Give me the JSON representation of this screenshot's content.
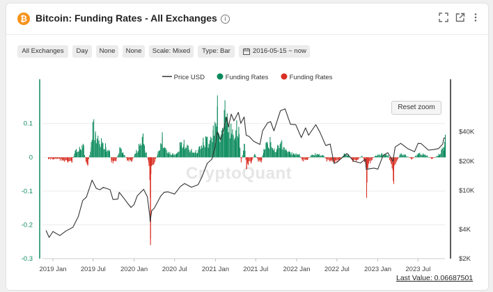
{
  "header": {
    "title": "Bitcoin: Funding Rates - All Exchanges",
    "info_glyph": "i",
    "coin_glyph": "₿",
    "icons": [
      "expand-icon",
      "external-link-icon",
      "more-vertical-icon"
    ]
  },
  "filters": [
    "All Exchanges",
    "Day",
    "None",
    "None",
    "Scale: Mixed",
    "Type: Bar"
  ],
  "date_range": "2016-05-15 ~ now",
  "reset_zoom": "Reset zoom",
  "watermark": "CryptoQuant",
  "last_value": "Last Value: 0.06687501",
  "colors": {
    "price": "#333333",
    "positive": "#0a8a5c",
    "negative": "#d93025",
    "coin": "#f7931a"
  },
  "chart_data": {
    "type": "bar",
    "legend": [
      {
        "name": "Price USD",
        "kind": "line",
        "color": "#333333"
      },
      {
        "name": "Funding Rates",
        "kind": "bar",
        "color": "#0a8a5c"
      },
      {
        "name": "Funding Rates",
        "kind": "bar",
        "color": "#d93025"
      }
    ],
    "x_ticks": [
      "2019 Jan",
      "2019 Jul",
      "2020 Jan",
      "2020 Jul",
      "2021 Jan",
      "2021 Jul",
      "2022 Jan",
      "2022 Jul",
      "2023 Jan",
      "2023 Jul"
    ],
    "y_left_ticks": [
      "0.1",
      "0",
      "-0.1",
      "-0.2",
      "-0.3"
    ],
    "y_right_ticks": [
      "$40K",
      "$20K",
      "$10K",
      "$4K",
      "$2K"
    ],
    "y_left_range": [
      -0.3,
      0.19
    ],
    "y_right_range": [
      2000,
      100000
    ],
    "y_right_scale": "log",
    "x_range": [
      "2018-11-15",
      "2023-10-30"
    ],
    "price_usd": [
      [
        "2018-12-01",
        3900
      ],
      [
        "2018-12-15",
        3300
      ],
      [
        "2019-01-01",
        3800
      ],
      [
        "2019-02-01",
        3450
      ],
      [
        "2019-03-01",
        3850
      ],
      [
        "2019-04-01",
        4200
      ],
      [
        "2019-04-25",
        5400
      ],
      [
        "2019-05-15",
        7900
      ],
      [
        "2019-06-01",
        8600
      ],
      [
        "2019-06-26",
        12800
      ],
      [
        "2019-07-15",
        10500
      ],
      [
        "2019-08-01",
        10200
      ],
      [
        "2019-08-15",
        10800
      ],
      [
        "2019-09-15",
        10200
      ],
      [
        "2019-09-28",
        8100
      ],
      [
        "2019-10-20",
        8200
      ],
      [
        "2019-10-26",
        9600
      ],
      [
        "2019-11-15",
        8400
      ],
      [
        "2019-12-01",
        7500
      ],
      [
        "2019-12-18",
        6700
      ],
      [
        "2020-01-01",
        7200
      ],
      [
        "2020-01-15",
        8800
      ],
      [
        "2020-02-13",
        10300
      ],
      [
        "2020-03-01",
        8600
      ],
      [
        "2020-03-12",
        5400
      ],
      [
        "2020-03-13",
        4800
      ],
      [
        "2020-03-20",
        6200
      ],
      [
        "2020-04-01",
        6600
      ],
      [
        "2020-04-30",
        8800
      ],
      [
        "2020-05-15",
        9600
      ],
      [
        "2020-06-01",
        9700
      ],
      [
        "2020-07-01",
        9200
      ],
      [
        "2020-07-27",
        11000
      ],
      [
        "2020-08-15",
        11800
      ],
      [
        "2020-09-15",
        10800
      ],
      [
        "2020-10-15",
        11500
      ],
      [
        "2020-11-01",
        13800
      ],
      [
        "2020-11-25",
        19000
      ],
      [
        "2020-12-16",
        21000
      ],
      [
        "2021-01-01",
        29000
      ],
      [
        "2021-01-08",
        40000
      ],
      [
        "2021-01-25",
        33000
      ],
      [
        "2021-02-21",
        57000
      ],
      [
        "2021-02-28",
        45000
      ],
      [
        "2021-03-13",
        61000
      ],
      [
        "2021-03-25",
        52000
      ],
      [
        "2021-04-14",
        63500
      ],
      [
        "2021-04-25",
        49000
      ],
      [
        "2021-05-10",
        57000
      ],
      [
        "2021-05-19",
        37000
      ],
      [
        "2021-06-01",
        36000
      ],
      [
        "2021-06-22",
        32000
      ],
      [
        "2021-07-20",
        29800
      ],
      [
        "2021-08-01",
        41000
      ],
      [
        "2021-08-23",
        49500
      ],
      [
        "2021-09-06",
        51000
      ],
      [
        "2021-09-21",
        41000
      ],
      [
        "2021-10-20",
        66000
      ],
      [
        "2021-11-10",
        69000
      ],
      [
        "2021-12-04",
        48000
      ],
      [
        "2021-12-28",
        47500
      ],
      [
        "2022-01-22",
        35000
      ],
      [
        "2022-02-10",
        44000
      ],
      [
        "2022-02-24",
        37000
      ],
      [
        "2022-03-28",
        47500
      ],
      [
        "2022-04-15",
        40000
      ],
      [
        "2022-05-12",
        29000
      ],
      [
        "2022-06-01",
        30000
      ],
      [
        "2022-06-18",
        19000
      ],
      [
        "2022-07-01",
        19500
      ],
      [
        "2022-08-15",
        24000
      ],
      [
        "2022-09-15",
        20000
      ],
      [
        "2022-10-15",
        19200
      ],
      [
        "2022-11-06",
        21000
      ],
      [
        "2022-11-10",
        16500
      ],
      [
        "2022-12-15",
        17000
      ],
      [
        "2023-01-01",
        16600
      ],
      [
        "2023-01-25",
        23000
      ],
      [
        "2023-02-15",
        24500
      ],
      [
        "2023-03-10",
        20000
      ],
      [
        "2023-03-20",
        28000
      ],
      [
        "2023-04-14",
        30500
      ],
      [
        "2023-05-15",
        27000
      ],
      [
        "2023-06-15",
        25000
      ],
      [
        "2023-07-01",
        30500
      ],
      [
        "2023-07-15",
        30300
      ],
      [
        "2023-08-17",
        26000
      ],
      [
        "2023-09-15",
        26500
      ],
      [
        "2023-10-01",
        27000
      ],
      [
        "2023-10-20",
        30000
      ],
      [
        "2023-10-25",
        34500
      ],
      [
        "2023-10-30",
        34600
      ]
    ],
    "funding_rates": [
      [
        "2018-12-10",
        -0.005
      ],
      [
        "2019-01-01",
        -0.006
      ],
      [
        "2019-01-20",
        -0.004
      ],
      [
        "2019-02-10",
        -0.01
      ],
      [
        "2019-03-05",
        -0.012
      ],
      [
        "2019-03-25",
        -0.015
      ],
      [
        "2019-04-10",
        0.02
      ],
      [
        "2019-05-01",
        0.025
      ],
      [
        "2019-05-15",
        0.04
      ],
      [
        "2019-05-28",
        -0.012
      ],
      [
        "2019-06-05",
        -0.025
      ],
      [
        "2019-06-20",
        0.03
      ],
      [
        "2019-06-28",
        0.105
      ],
      [
        "2019-07-10",
        0.07
      ],
      [
        "2019-07-25",
        0.05
      ],
      [
        "2019-08-10",
        0.045
      ],
      [
        "2019-08-25",
        0.03
      ],
      [
        "2019-09-10",
        0.02
      ],
      [
        "2019-09-20",
        -0.015
      ],
      [
        "2019-10-10",
        -0.012
      ],
      [
        "2019-10-27",
        0.03
      ],
      [
        "2019-11-10",
        0.015
      ],
      [
        "2019-12-01",
        -0.01
      ],
      [
        "2019-12-20",
        -0.012
      ],
      [
        "2020-01-10",
        0.02
      ],
      [
        "2020-01-25",
        0.035
      ],
      [
        "2020-02-08",
        0.065
      ],
      [
        "2020-02-15",
        0.035
      ],
      [
        "2020-03-05",
        -0.015
      ],
      [
        "2020-03-12",
        -0.12
      ],
      [
        "2020-03-13",
        -0.26
      ],
      [
        "2020-03-15",
        -0.05
      ],
      [
        "2020-03-28",
        -0.02
      ],
      [
        "2020-04-15",
        0.01
      ],
      [
        "2020-05-05",
        0.06
      ],
      [
        "2020-05-15",
        0.03
      ],
      [
        "2020-06-01",
        0.015
      ],
      [
        "2020-06-20",
        0.01
      ],
      [
        "2020-07-10",
        0.01
      ],
      [
        "2020-07-28",
        0.045
      ],
      [
        "2020-08-10",
        0.04
      ],
      [
        "2020-08-25",
        0.035
      ],
      [
        "2020-09-10",
        0.02
      ],
      [
        "2020-10-01",
        0.015
      ],
      [
        "2020-10-20",
        0.03
      ],
      [
        "2020-11-05",
        0.045
      ],
      [
        "2020-11-20",
        0.06
      ],
      [
        "2020-12-01",
        0.04
      ],
      [
        "2020-12-20",
        0.08
      ],
      [
        "2021-01-01",
        0.1
      ],
      [
        "2021-01-08",
        0.15
      ],
      [
        "2021-01-15",
        0.07
      ],
      [
        "2021-01-25",
        0.06
      ],
      [
        "2021-02-08",
        0.14
      ],
      [
        "2021-02-14",
        0.12
      ],
      [
        "2021-02-21",
        0.13
      ],
      [
        "2021-03-01",
        0.07
      ],
      [
        "2021-03-10",
        0.1
      ],
      [
        "2021-03-20",
        0.06
      ],
      [
        "2021-04-01",
        0.08
      ],
      [
        "2021-04-14",
        0.09
      ],
      [
        "2021-04-25",
        -0.015
      ],
      [
        "2021-05-10",
        0.04
      ],
      [
        "2021-05-19",
        -0.035
      ],
      [
        "2021-05-25",
        -0.02
      ],
      [
        "2021-06-10",
        -0.015
      ],
      [
        "2021-06-25",
        0.01
      ],
      [
        "2021-07-10",
        -0.01
      ],
      [
        "2021-07-25",
        -0.015
      ],
      [
        "2021-08-05",
        0.025
      ],
      [
        "2021-08-20",
        0.045
      ],
      [
        "2021-09-05",
        0.045
      ],
      [
        "2021-09-20",
        0.02
      ],
      [
        "2021-10-05",
        0.03
      ],
      [
        "2021-10-20",
        0.045
      ],
      [
        "2021-11-01",
        0.03
      ],
      [
        "2021-11-15",
        0.02
      ],
      [
        "2021-12-01",
        0.015
      ],
      [
        "2021-12-20",
        0.01
      ],
      [
        "2022-01-10",
        0.01
      ],
      [
        "2022-01-25",
        -0.01
      ],
      [
        "2022-02-15",
        -0.008
      ],
      [
        "2022-03-10",
        0.008
      ],
      [
        "2022-04-01",
        0.01
      ],
      [
        "2022-05-01",
        0.005
      ],
      [
        "2022-05-15",
        -0.01
      ],
      [
        "2022-06-10",
        -0.012
      ],
      [
        "2022-06-20",
        -0.015
      ],
      [
        "2022-07-10",
        -0.01
      ],
      [
        "2022-08-01",
        0.01
      ],
      [
        "2022-08-20",
        0.008
      ],
      [
        "2022-09-10",
        -0.012
      ],
      [
        "2022-10-01",
        -0.008
      ],
      [
        "2022-10-20",
        0.005
      ],
      [
        "2022-11-09",
        -0.025
      ],
      [
        "2022-11-10",
        -0.12
      ],
      [
        "2022-11-15",
        -0.03
      ],
      [
        "2022-12-01",
        -0.01
      ],
      [
        "2022-12-20",
        0.005
      ],
      [
        "2023-01-15",
        0.01
      ],
      [
        "2023-02-01",
        0.008
      ],
      [
        "2023-02-15",
        0.006
      ],
      [
        "2023-03-01",
        -0.02
      ],
      [
        "2023-03-10",
        -0.07
      ],
      [
        "2023-03-20",
        -0.02
      ],
      [
        "2023-04-10",
        0.01
      ],
      [
        "2023-05-01",
        0.008
      ],
      [
        "2023-06-01",
        -0.006
      ],
      [
        "2023-07-01",
        0.012
      ],
      [
        "2023-08-01",
        0.008
      ],
      [
        "2023-09-01",
        -0.005
      ],
      [
        "2023-10-01",
        0.008
      ],
      [
        "2023-10-15",
        0.025
      ],
      [
        "2023-10-25",
        0.03
      ],
      [
        "2023-10-30",
        0.067
      ]
    ]
  }
}
